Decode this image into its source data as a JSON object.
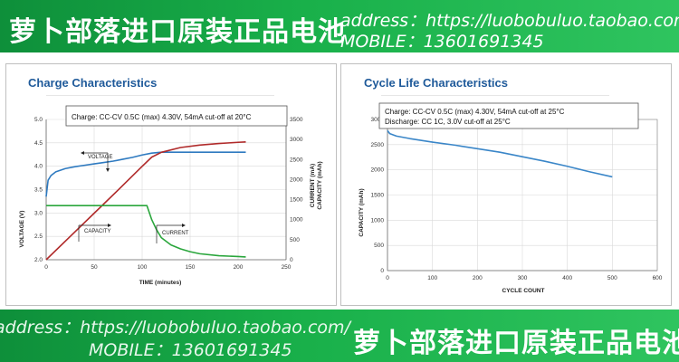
{
  "banner_top": {
    "title_cn": "萝卜部落进口原装正品电池",
    "address": "address：https://luobobuluo.taobao.com/",
    "mobile": "MOBILE：13601691345"
  },
  "banner_bottom": {
    "address": "address：https://luobobuluo.taobao.com/",
    "mobile": "MOBILE：13601691345",
    "title_cn": "萝卜部落进口原装正品电池"
  },
  "colors": {
    "banner_green": "#19b04a",
    "title_blue": "#1f5a9a",
    "voltage_blue": "#2e7ac0",
    "capacity_red": "#b02a2a",
    "current_green": "#2aa63c",
    "cycle_blue": "#3a86c8"
  },
  "chart_data": [
    {
      "type": "line",
      "title": "Charge Characteristics",
      "note": "Charge:      CC-CV 0.5C (max) 4.30V, 54mA cut-off at 20°C",
      "xlabel": "TIME (minutes)",
      "ylabel_left": "VOLTAGE (V)",
      "ylabel_right_1": "CURRENT (mA)",
      "ylabel_right_2": "CAPACITY (mAh)",
      "xlim": [
        0,
        250
      ],
      "ylim_left": [
        2.0,
        5.0
      ],
      "ylim_right": [
        0,
        3500
      ],
      "x_ticks": [
        "0",
        "50",
        "100",
        "150",
        "200",
        "250"
      ],
      "y_ticks_left": [
        "2.0",
        "2.5",
        "3.0",
        "3.5",
        "4.0",
        "4.5",
        "5.0"
      ],
      "y_ticks_right": [
        "0",
        "500",
        "1000",
        "1500",
        "2000",
        "2500",
        "3000",
        "3500"
      ],
      "annotations": {
        "voltage": "VOLTAGE",
        "capacity": "CAPACITY",
        "current": "CURRENT"
      },
      "series": [
        {
          "axis": "left",
          "x": [
            0,
            2,
            5,
            10,
            20,
            30,
            40,
            50,
            60,
            70,
            80,
            90,
            100,
            110,
            120,
            140,
            160,
            180,
            200,
            208
          ],
          "y": [
            3.35,
            3.7,
            3.8,
            3.88,
            3.95,
            3.99,
            4.02,
            4.05,
            4.08,
            4.11,
            4.15,
            4.19,
            4.24,
            4.28,
            4.3,
            4.3,
            4.3,
            4.3,
            4.3,
            4.3
          ]
        },
        {
          "axis": "right",
          "x": [
            0,
            25,
            50,
            75,
            100,
            110,
            120,
            140,
            160,
            180,
            200,
            208
          ],
          "y": [
            0,
            580,
            1160,
            1740,
            2330,
            2560,
            2680,
            2800,
            2860,
            2900,
            2930,
            2940
          ]
        },
        {
          "axis": "right",
          "x": [
            0,
            5,
            50,
            105,
            110,
            115,
            120,
            130,
            140,
            150,
            160,
            180,
            200,
            208
          ],
          "y": [
            1350,
            1350,
            1350,
            1350,
            1000,
            750,
            550,
            370,
            270,
            200,
            150,
            100,
            80,
            70
          ]
        }
      ]
    },
    {
      "type": "line",
      "title": "Cycle Life Characteristics",
      "note_line1": "Charge:      CC-CV 0.5C (max) 4.30V, 54mA cut-off at 25°C",
      "note_line2": "Discharge:  CC 1C, 3.0V cut-off at 25°C",
      "xlabel": "CYCLE COUNT",
      "ylabel": "CAPACITY (mAh)",
      "xlim": [
        0,
        600
      ],
      "ylim": [
        0,
        3000
      ],
      "x_ticks": [
        "0",
        "100",
        "200",
        "300",
        "400",
        "500",
        "600"
      ],
      "y_ticks": [
        "0",
        "500",
        "1000",
        "1500",
        "2000",
        "2500",
        "3000"
      ],
      "series": [
        {
          "x": [
            0,
            5,
            20,
            50,
            100,
            150,
            200,
            250,
            300,
            350,
            400,
            450,
            500
          ],
          "y": [
            2780,
            2720,
            2670,
            2620,
            2550,
            2490,
            2420,
            2350,
            2260,
            2170,
            2070,
            1960,
            1860
          ]
        }
      ]
    }
  ]
}
